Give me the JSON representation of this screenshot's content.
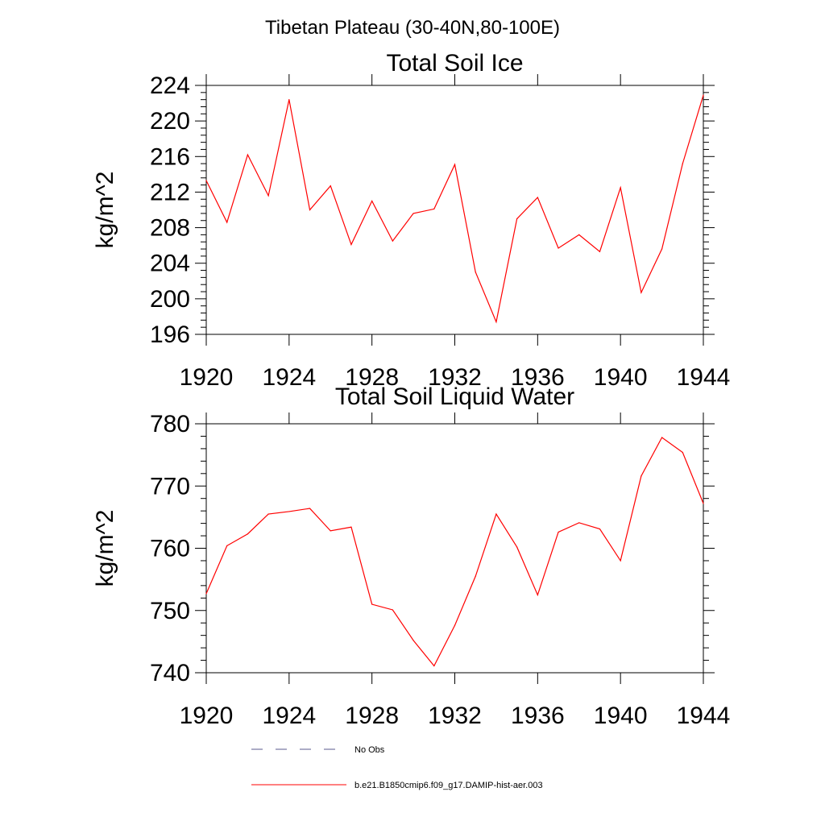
{
  "figure": {
    "main_title": "Tibetan Plateau (30-40N,80-100E)"
  },
  "chart_data": [
    {
      "type": "line",
      "title": "Total Soil Ice",
      "xlabel": "",
      "ylabel": "kg/m^2",
      "xlim": [
        1920,
        1944
      ],
      "ylim": [
        196,
        224
      ],
      "x_ticks": [
        "1920",
        "1924",
        "1928",
        "1932",
        "1936",
        "1940",
        "1944"
      ],
      "y_ticks": [
        "196",
        "200",
        "204",
        "208",
        "212",
        "216",
        "220",
        "224"
      ],
      "x": [
        1920,
        1921,
        1922,
        1923,
        1924,
        1925,
        1926,
        1927,
        1928,
        1929,
        1930,
        1931,
        1932,
        1933,
        1934,
        1935,
        1936,
        1937,
        1938,
        1939,
        1940,
        1941,
        1942,
        1943,
        1944
      ],
      "series": [
        {
          "name": "b.e21.B1850cmip6.f09_g17.DAMIP-hist-aer.003",
          "color": "#ff0000",
          "values": [
            213.3,
            208.6,
            216.2,
            211.6,
            222.4,
            210.0,
            212.7,
            206.1,
            211.0,
            206.5,
            209.6,
            210.1,
            215.1,
            203.0,
            197.4,
            209.0,
            211.4,
            205.7,
            207.2,
            205.3,
            212.5,
            200.7,
            205.6,
            215.2,
            222.9
          ]
        }
      ],
      "grid": false
    },
    {
      "type": "line",
      "title": "Total Soil Liquid Water",
      "xlabel": "",
      "ylabel": "kg/m^2",
      "xlim": [
        1920,
        1944
      ],
      "ylim": [
        740,
        780
      ],
      "x_ticks": [
        "1920",
        "1924",
        "1928",
        "1932",
        "1936",
        "1940",
        "1944"
      ],
      "y_ticks": [
        "740",
        "750",
        "760",
        "770",
        "780"
      ],
      "x": [
        1920,
        1921,
        1922,
        1923,
        1924,
        1925,
        1926,
        1927,
        1928,
        1929,
        1930,
        1931,
        1932,
        1933,
        1934,
        1935,
        1936,
        1937,
        1938,
        1939,
        1940,
        1941,
        1942,
        1943,
        1944
      ],
      "series": [
        {
          "name": "b.e21.B1850cmip6.f09_g17.DAMIP-hist-aer.003",
          "color": "#ff0000",
          "values": [
            752.7,
            760.4,
            762.3,
            765.5,
            765.9,
            766.4,
            762.8,
            763.4,
            751.0,
            750.1,
            745.2,
            741.1,
            747.6,
            755.5,
            765.5,
            760.2,
            752.5,
            762.6,
            764.1,
            763.1,
            758.0,
            771.6,
            777.8,
            775.4,
            767.2
          ]
        }
      ],
      "grid": false
    }
  ],
  "legend": {
    "items": [
      {
        "label": "No Obs",
        "color": "#5a5a8c",
        "style": "dashed"
      },
      {
        "label": "b.e21.B1850cmip6.f09_g17.DAMIP-hist-aer.003",
        "color": "#ff0000",
        "style": "solid"
      }
    ]
  }
}
